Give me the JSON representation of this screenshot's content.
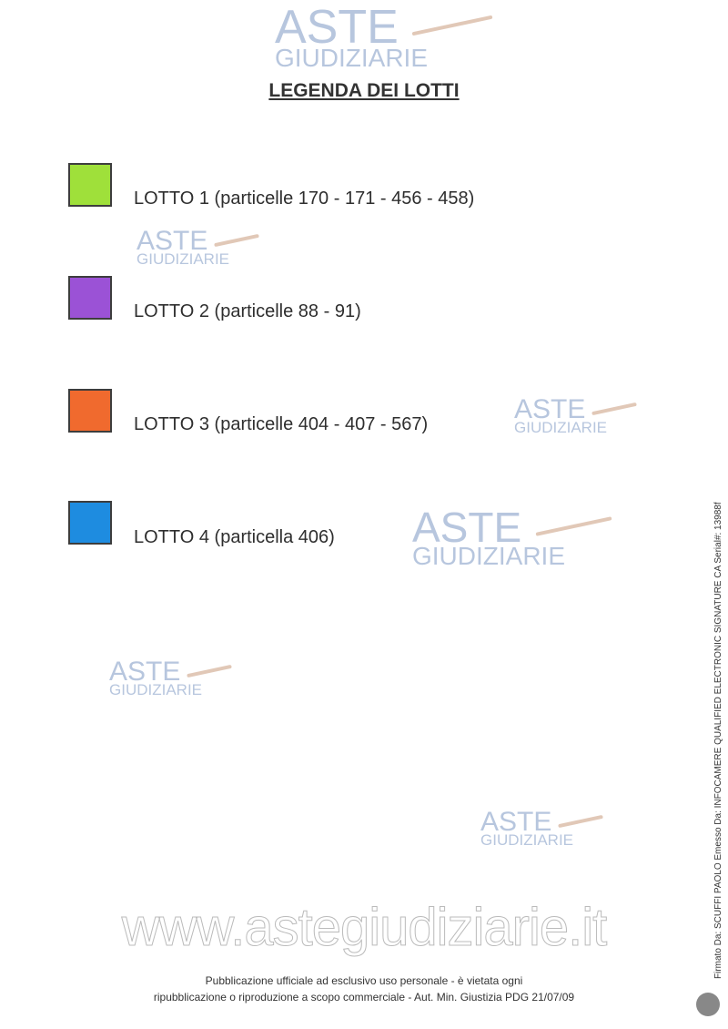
{
  "title": "LEGENDA DEI LOTTI",
  "lots": [
    {
      "label": "LOTTO 1 (particelle 170 - 171 - 456 - 458)",
      "color": "#9fe03a"
    },
    {
      "label": "LOTTO 2 (particelle 88 - 91)",
      "color": "#9b52d6"
    },
    {
      "label": "LOTTO 3 (particelle 404 - 407 - 567)",
      "color": "#f06a2e"
    },
    {
      "label": "LOTTO 4 (particella 406)",
      "color": "#1e8ce0"
    }
  ],
  "watermark": {
    "line1": "ASTE",
    "line2": "GIUDIZIARIE",
    "site": "www.astegiudiziarie.it"
  },
  "footer": {
    "line1": "Pubblicazione ufficiale ad esclusivo uso personale - è vietata ogni",
    "line2": "ripubblicazione o riproduzione a scopo commerciale - Aut. Min. Giustizia PDG 21/07/09"
  },
  "signature": "Firmato Da: SCUFFI PAOLO Emesso Da: INFOCAMERE QUALIFIED ELECTRONIC SIGNATURE CA Serial#: 13988f"
}
